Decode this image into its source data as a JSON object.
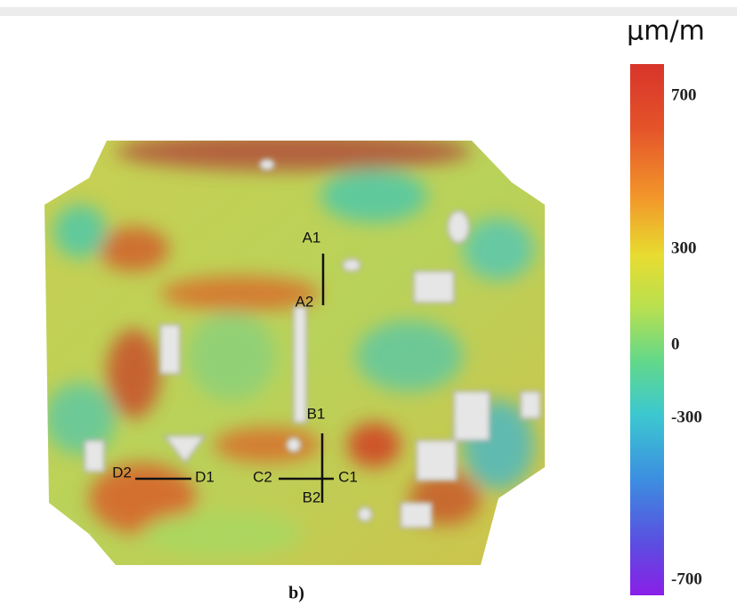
{
  "unit": "µm/m",
  "colorbar": {
    "ticks": [
      700,
      300,
      0,
      -300,
      -700
    ]
  },
  "markers": [
    "A1",
    "A2",
    "B1",
    "B2",
    "C1",
    "C2",
    "D1",
    "D2"
  ],
  "caption": "b)"
}
